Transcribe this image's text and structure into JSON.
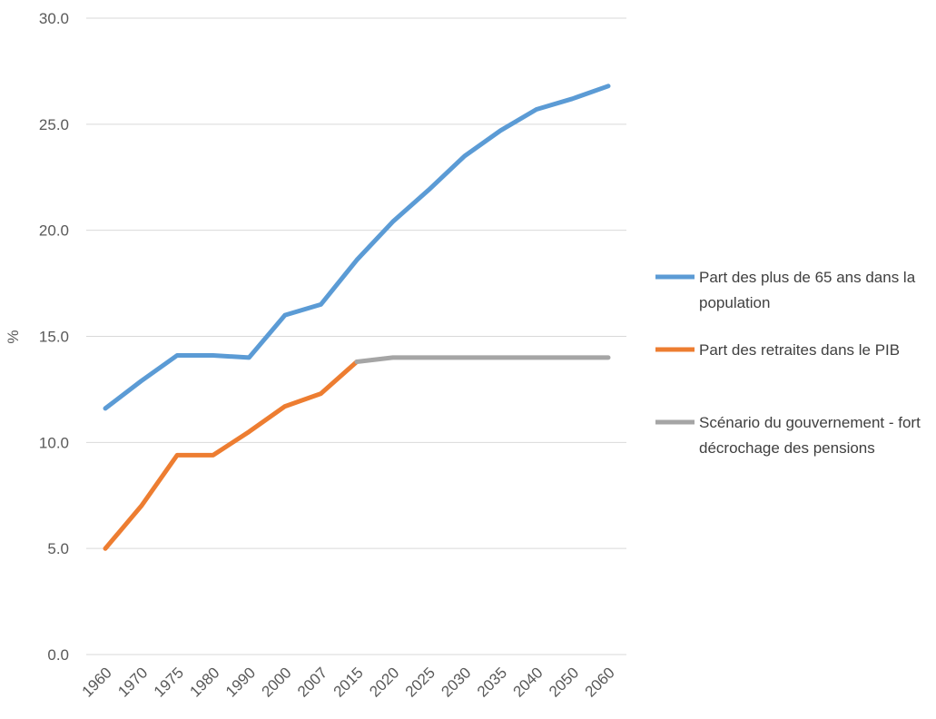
{
  "chart_data": {
    "type": "line",
    "title": "",
    "xlabel": "",
    "ylabel": "%",
    "ylim": [
      0,
      30
    ],
    "yticks": [
      "0.0",
      "5.0",
      "10.0",
      "15.0",
      "20.0",
      "25.0",
      "30.0"
    ],
    "categories": [
      "1960",
      "1970",
      "1975",
      "1980",
      "1990",
      "2000",
      "2007",
      "2015",
      "2020",
      "2025",
      "2030",
      "2035",
      "2040",
      "2050",
      "2060"
    ],
    "grid": true,
    "legend_position": "right",
    "series": [
      {
        "name": "Part des plus de 65 ans dans la population",
        "legend_lines": [
          "Part des plus de 65 ans dans la",
          "population"
        ],
        "color": "#5B9BD5",
        "values": [
          11.6,
          12.9,
          14.1,
          14.1,
          14.0,
          16.0,
          16.5,
          18.6,
          20.4,
          21.9,
          23.5,
          24.7,
          25.7,
          26.2,
          26.8
        ]
      },
      {
        "name": "Part des retraites dans le PIB",
        "legend_lines": [
          "Part des retraites dans le PIB"
        ],
        "color": "#ED7D31",
        "values": [
          5.0,
          7.0,
          9.4,
          9.4,
          10.5,
          11.7,
          12.3,
          13.8,
          null,
          null,
          null,
          null,
          null,
          null,
          null
        ]
      },
      {
        "name": "Scénario du gouvernement - fort décrochage des pensions",
        "legend_lines": [
          "Scénario du gouvernement - fort",
          "décrochage des pensions"
        ],
        "color": "#A5A5A5",
        "values": [
          null,
          null,
          null,
          null,
          null,
          null,
          null,
          13.8,
          14.0,
          14.0,
          14.0,
          14.0,
          14.0,
          14.0,
          14.0
        ]
      }
    ]
  }
}
